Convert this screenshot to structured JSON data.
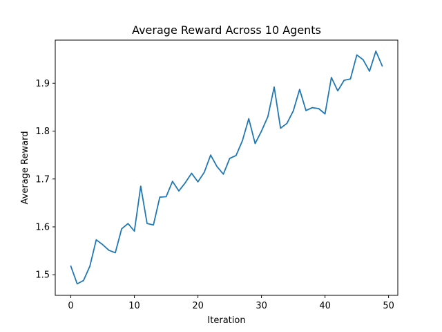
{
  "chart_data": {
    "type": "line",
    "title": "Average Reward Across 10 Agents",
    "xlabel": "Iteration",
    "ylabel": "Average Reward",
    "xlim": [
      -2.45,
      51.45
    ],
    "ylim": [
      1.457,
      1.99
    ],
    "xticks": [
      0,
      10,
      20,
      30,
      40,
      50
    ],
    "yticks": [
      1.5,
      1.6,
      1.7,
      1.8,
      1.9
    ],
    "ytick_labels": [
      "1.5",
      "1.6",
      "1.7",
      "1.8",
      "1.9"
    ],
    "grid": false,
    "series": [
      {
        "color": "#1f77b4",
        "x": [
          0,
          1,
          2,
          3,
          4,
          5,
          6,
          7,
          8,
          9,
          10,
          11,
          12,
          13,
          14,
          15,
          16,
          17,
          18,
          19,
          20,
          21,
          22,
          23,
          24,
          25,
          26,
          27,
          28,
          29,
          30,
          31,
          32,
          33,
          34,
          35,
          36,
          37,
          38,
          39,
          40,
          41,
          42,
          43,
          44,
          45,
          46,
          47,
          48,
          49
        ],
        "y": [
          1.518,
          1.481,
          1.488,
          1.518,
          1.573,
          1.563,
          1.551,
          1.546,
          1.596,
          1.607,
          1.591,
          1.685,
          1.607,
          1.604,
          1.662,
          1.663,
          1.695,
          1.675,
          1.692,
          1.712,
          1.694,
          1.714,
          1.75,
          1.726,
          1.71,
          1.743,
          1.749,
          1.78,
          1.826,
          1.774,
          1.8,
          1.83,
          1.892,
          1.806,
          1.816,
          1.842,
          1.887,
          1.843,
          1.849,
          1.847,
          1.836,
          1.912,
          1.884,
          1.906,
          1.909,
          1.959,
          1.949,
          1.925,
          1.967,
          1.936
        ]
      }
    ]
  }
}
